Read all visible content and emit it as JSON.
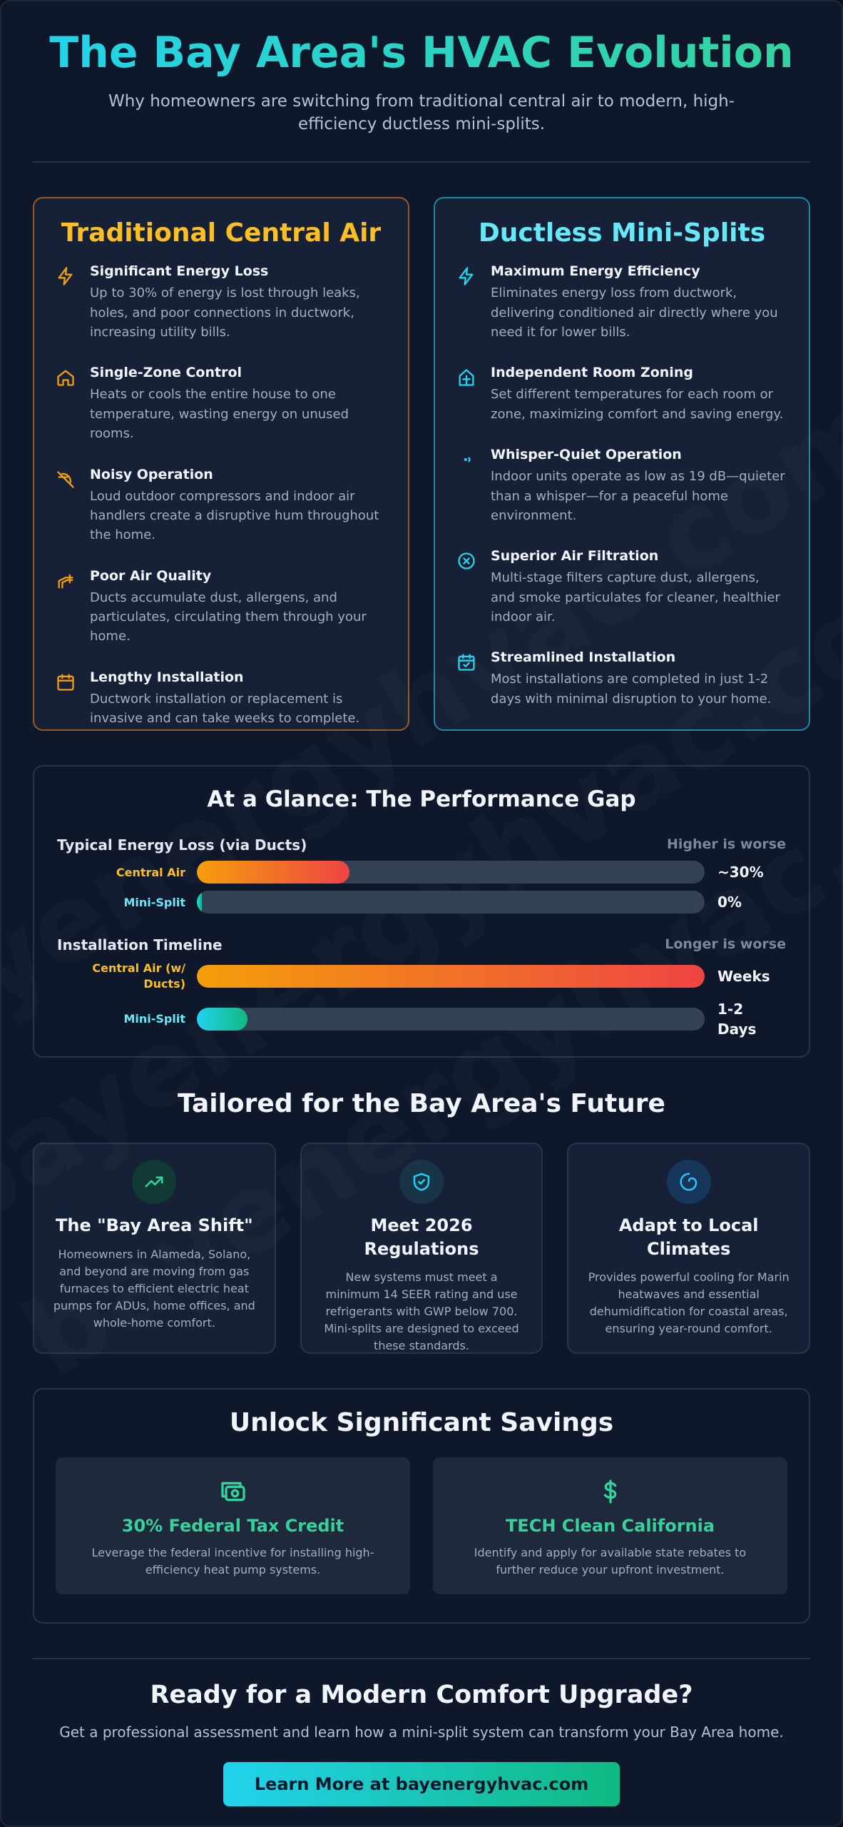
{
  "header": {
    "title": "The Bay Area's HVAC Evolution",
    "subtitle": "Why homeowners are switching from traditional central air to modern, high-efficiency ductless mini-splits."
  },
  "watermark": "bayenergyhvac.com bayenergyhvac.com bayenergyhvac.com",
  "traditional": {
    "title": "Traditional Central Air",
    "features": [
      {
        "icon": "bolt-icon",
        "title": "Significant Energy Loss",
        "text": "Up to 30% of energy is lost through leaks, holes, and poor connections in ductwork, increasing utility bills."
      },
      {
        "icon": "home-icon",
        "title": "Single-Zone Control",
        "text": "Heats or cools the entire house to one temperature, wasting energy on unused rooms."
      },
      {
        "icon": "volume-off-icon",
        "title": "Noisy Operation",
        "text": "Loud outdoor compressors and indoor air handlers create a disruptive hum throughout the home."
      },
      {
        "icon": "duct-icon",
        "title": "Poor Air Quality",
        "text": "Ducts accumulate dust, allergens, and particulates, circulating them through your home."
      },
      {
        "icon": "calendar-icon",
        "title": "Lengthy Installation",
        "text": "Ductwork installation or replacement is invasive and can take weeks to complete."
      }
    ]
  },
  "ductless": {
    "title": "Ductless Mini-Splits",
    "features": [
      {
        "icon": "bolt-icon",
        "title": "Maximum Energy Efficiency",
        "text": "Eliminates energy loss from ductwork, delivering conditioned air directly where you need it for lower bills."
      },
      {
        "icon": "zoned-home-icon",
        "title": "Independent Room Zoning",
        "text": "Set different temperatures for each room or zone, maximizing comfort and saving energy."
      },
      {
        "icon": "volume-low-icon",
        "title": "Whisper-Quiet Operation",
        "text": "Indoor units operate as low as 19 dB—quieter than a whisper—for a peaceful home environment."
      },
      {
        "icon": "filter-icon",
        "title": "Superior Air Filtration",
        "text": "Multi-stage filters capture dust, allergens, and smoke particulates for cleaner, healthier indoor air."
      },
      {
        "icon": "calendar-check-icon",
        "title": "Streamlined Installation",
        "text": "Most installations are completed in just 1-2 days with minimal disruption to your home."
      }
    ]
  },
  "glance": {
    "title": "At a Glance: The Performance Gap",
    "metrics": [
      {
        "label": "Typical Energy Loss (via Ducts)",
        "note": "Higher is worse",
        "rows": [
          {
            "label": "Central Air",
            "value": "~30%",
            "fill": 0.3,
            "kind": "c"
          },
          {
            "label": "Mini-Split",
            "value": "0%",
            "fill": 0.0,
            "kind": "m"
          }
        ]
      },
      {
        "label": "Installation Timeline",
        "note": "Longer is worse",
        "rows": [
          {
            "label": "Central Air (w/ Ducts)",
            "value": "Weeks",
            "fill": 1.0,
            "kind": "c"
          },
          {
            "label": "Mini-Split",
            "value": "1-2 Days",
            "fill": 0.1,
            "kind": "m"
          }
        ]
      }
    ]
  },
  "future": {
    "title": "Tailored for the Bay Area's Future",
    "cards": [
      {
        "icon": "trending-up-icon",
        "title": "The \"Bay Area Shift\"",
        "text": "Homeowners in Alameda, Solano, and beyond are moving from gas furnaces to efficient electric heat pumps for ADUs, home offices, and whole-home comfort."
      },
      {
        "icon": "shield-check-icon",
        "title": "Meet 2026 Regulations",
        "text": "New systems must meet a minimum 14 SEER rating and use refrigerants with GWP below 700. Mini-splits are designed to exceed these standards."
      },
      {
        "icon": "climate-icon",
        "title": "Adapt to Local Climates",
        "text": "Provides powerful cooling for Marin heatwaves and essential dehumidification for coastal areas, ensuring year-round comfort."
      }
    ]
  },
  "savings": {
    "title": "Unlock Significant Savings",
    "cards": [
      {
        "icon": "money-icon",
        "title": "30% Federal Tax Credit",
        "text": "Leverage the federal incentive for installing high-efficiency heat pump systems."
      },
      {
        "icon": "dollar-icon",
        "title": "TECH Clean California",
        "text": "Identify and apply for available state rebates to further reduce your upfront investment."
      }
    ]
  },
  "cta": {
    "title": "Ready for a Modern Comfort Upgrade?",
    "text": "Get a professional assessment and learn how a mini-split system can transform your Bay Area home.",
    "button": "Learn More at bayenergyhvac.com"
  },
  "colors": {
    "background": "#0f172a",
    "accent_cyan": "#22d3ee",
    "accent_green": "#34d399",
    "accent_amber": "#fbbf24"
  }
}
